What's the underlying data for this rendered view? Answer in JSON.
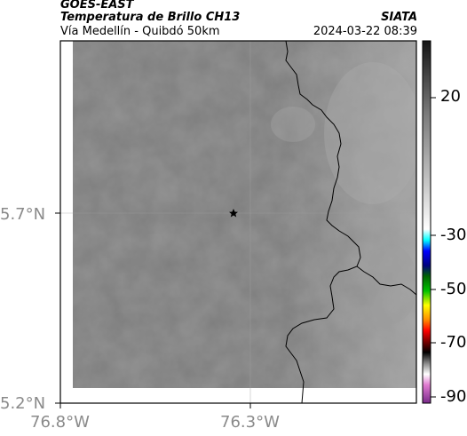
{
  "header": {
    "satellite": "GOES-EAST",
    "product": "Temperatura de Brillo CH13",
    "location": "Vía Medellín - Quibdó 50km",
    "organization": "SIATA",
    "datetime": "2024-03-22 08:39"
  },
  "axes": {
    "lat_labels": [
      "5.7°N",
      "5.2°N"
    ],
    "lon_labels": [
      "76.8°W",
      "76.3°W"
    ]
  },
  "colorbar": {
    "tick_labels": [
      "20",
      "-30",
      "-50",
      "-70",
      "-90"
    ]
  },
  "marker": {
    "icon": "star-icon"
  }
}
